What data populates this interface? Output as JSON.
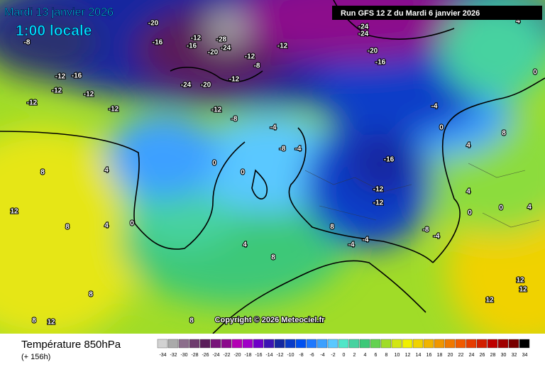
{
  "header": {
    "title": "Mardi 13 janvier 2026",
    "time": "1:00 locale",
    "run": "Run GFS 12 Z du Mardi 6 janvier 2026"
  },
  "copyright": "Copyright © 2026 Meteociel.fr",
  "legend": {
    "title": "Température 850hPa",
    "lead": "(+ 156h)",
    "values": [
      -34,
      -32,
      -30,
      -28,
      -26,
      -24,
      -22,
      -20,
      -18,
      -16,
      -14,
      -12,
      -10,
      -8,
      -6,
      -4,
      -2,
      0,
      2,
      4,
      6,
      8,
      10,
      12,
      14,
      16,
      18,
      20,
      22,
      24,
      26,
      28,
      30,
      32,
      34
    ],
    "colors": [
      "#d2d2d2",
      "#aaaaaa",
      "#8c6e8c",
      "#6e3c6e",
      "#5a1e5a",
      "#78147a",
      "#8c0a8c",
      "#b400b4",
      "#a000c8",
      "#6e00c8",
      "#3c14b4",
      "#1428a0",
      "#0a3cc8",
      "#0050f0",
      "#1e78ff",
      "#3ca0ff",
      "#5ac8ff",
      "#50e6c8",
      "#46d2a0",
      "#3cc878",
      "#64d250",
      "#a0dc28",
      "#d2e614",
      "#f0f000",
      "#f0d200",
      "#f0b400",
      "#f09600",
      "#f07800",
      "#f05a00",
      "#e63c00",
      "#d21e00",
      "#be0000",
      "#a00000",
      "#780000",
      "#000000"
    ]
  },
  "contour_labels": [
    -8,
    -20,
    -16,
    -12,
    -16,
    -20,
    -24,
    -28,
    -12,
    -12,
    -8,
    -24,
    -20,
    -12,
    -12,
    -8,
    -4,
    -8,
    -4,
    -16,
    -12,
    -12,
    -8,
    -4,
    -4,
    -4,
    -20,
    -24,
    -24,
    -16,
    -4,
    0,
    8,
    4,
    0,
    0,
    4,
    8,
    12,
    8,
    4,
    0,
    4,
    8,
    8,
    12,
    12,
    12,
    8,
    8,
    12,
    8,
    4,
    0,
    4,
    0,
    0,
    4,
    -12,
    -16,
    -12,
    -12,
    -12,
    -12
  ]
}
